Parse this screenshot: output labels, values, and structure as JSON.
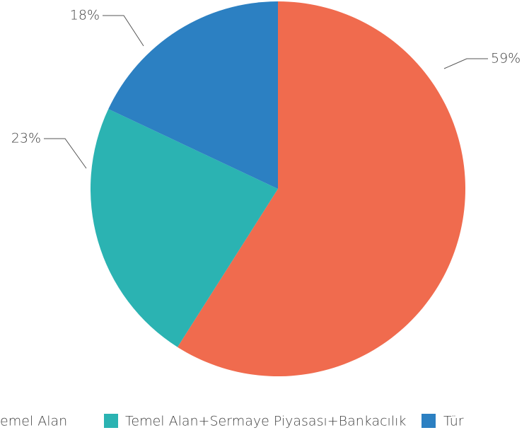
{
  "chart_data": {
    "type": "pie",
    "categories": [
      "emel Alan",
      "Temel Alan+Sermaye Piyasası+Bankacılık",
      "Tür"
    ],
    "values": [
      59,
      23,
      18
    ],
    "value_labels": [
      "59%",
      "23%",
      "18%"
    ],
    "colors": [
      "#f06b4e",
      "#2bb3b2",
      "#2c80c2"
    ]
  }
}
